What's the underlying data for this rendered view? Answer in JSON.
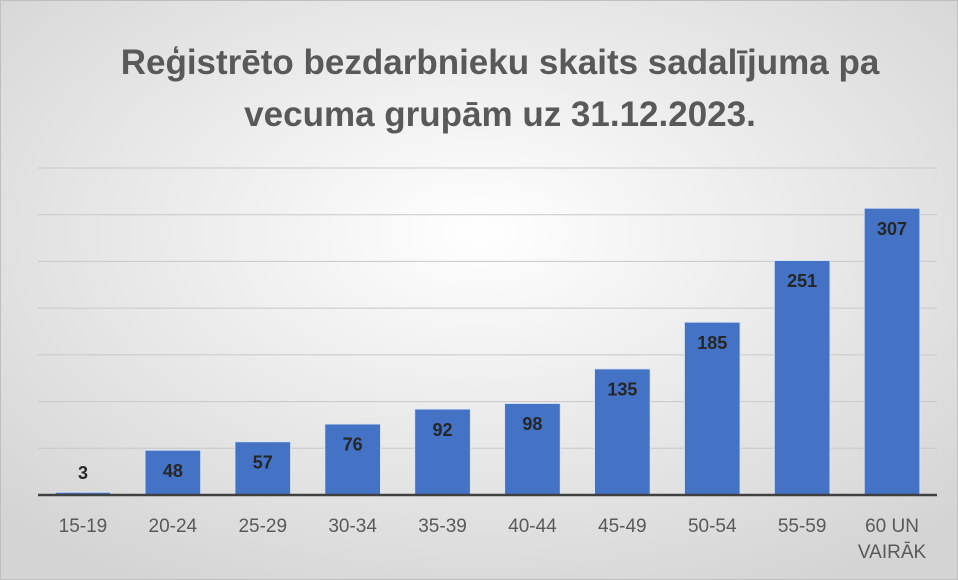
{
  "chart_data": {
    "type": "bar",
    "title": "Reģistrēto bezdarbnieku skaits sadalījuma pa vecuma grupām uz 31.12.2023.",
    "categories": [
      "15-19",
      "20-24",
      "25-29",
      "30-34",
      "35-39",
      "40-44",
      "45-49",
      "50-54",
      "55-59",
      "60 UN VAIRĀK"
    ],
    "values": [
      3,
      48,
      57,
      76,
      92,
      98,
      135,
      185,
      251,
      307
    ],
    "color": "#4472c4",
    "ylim": [
      0,
      350
    ],
    "yticks": [
      0,
      50,
      100,
      150,
      200,
      250,
      300,
      350
    ],
    "grid": true
  }
}
